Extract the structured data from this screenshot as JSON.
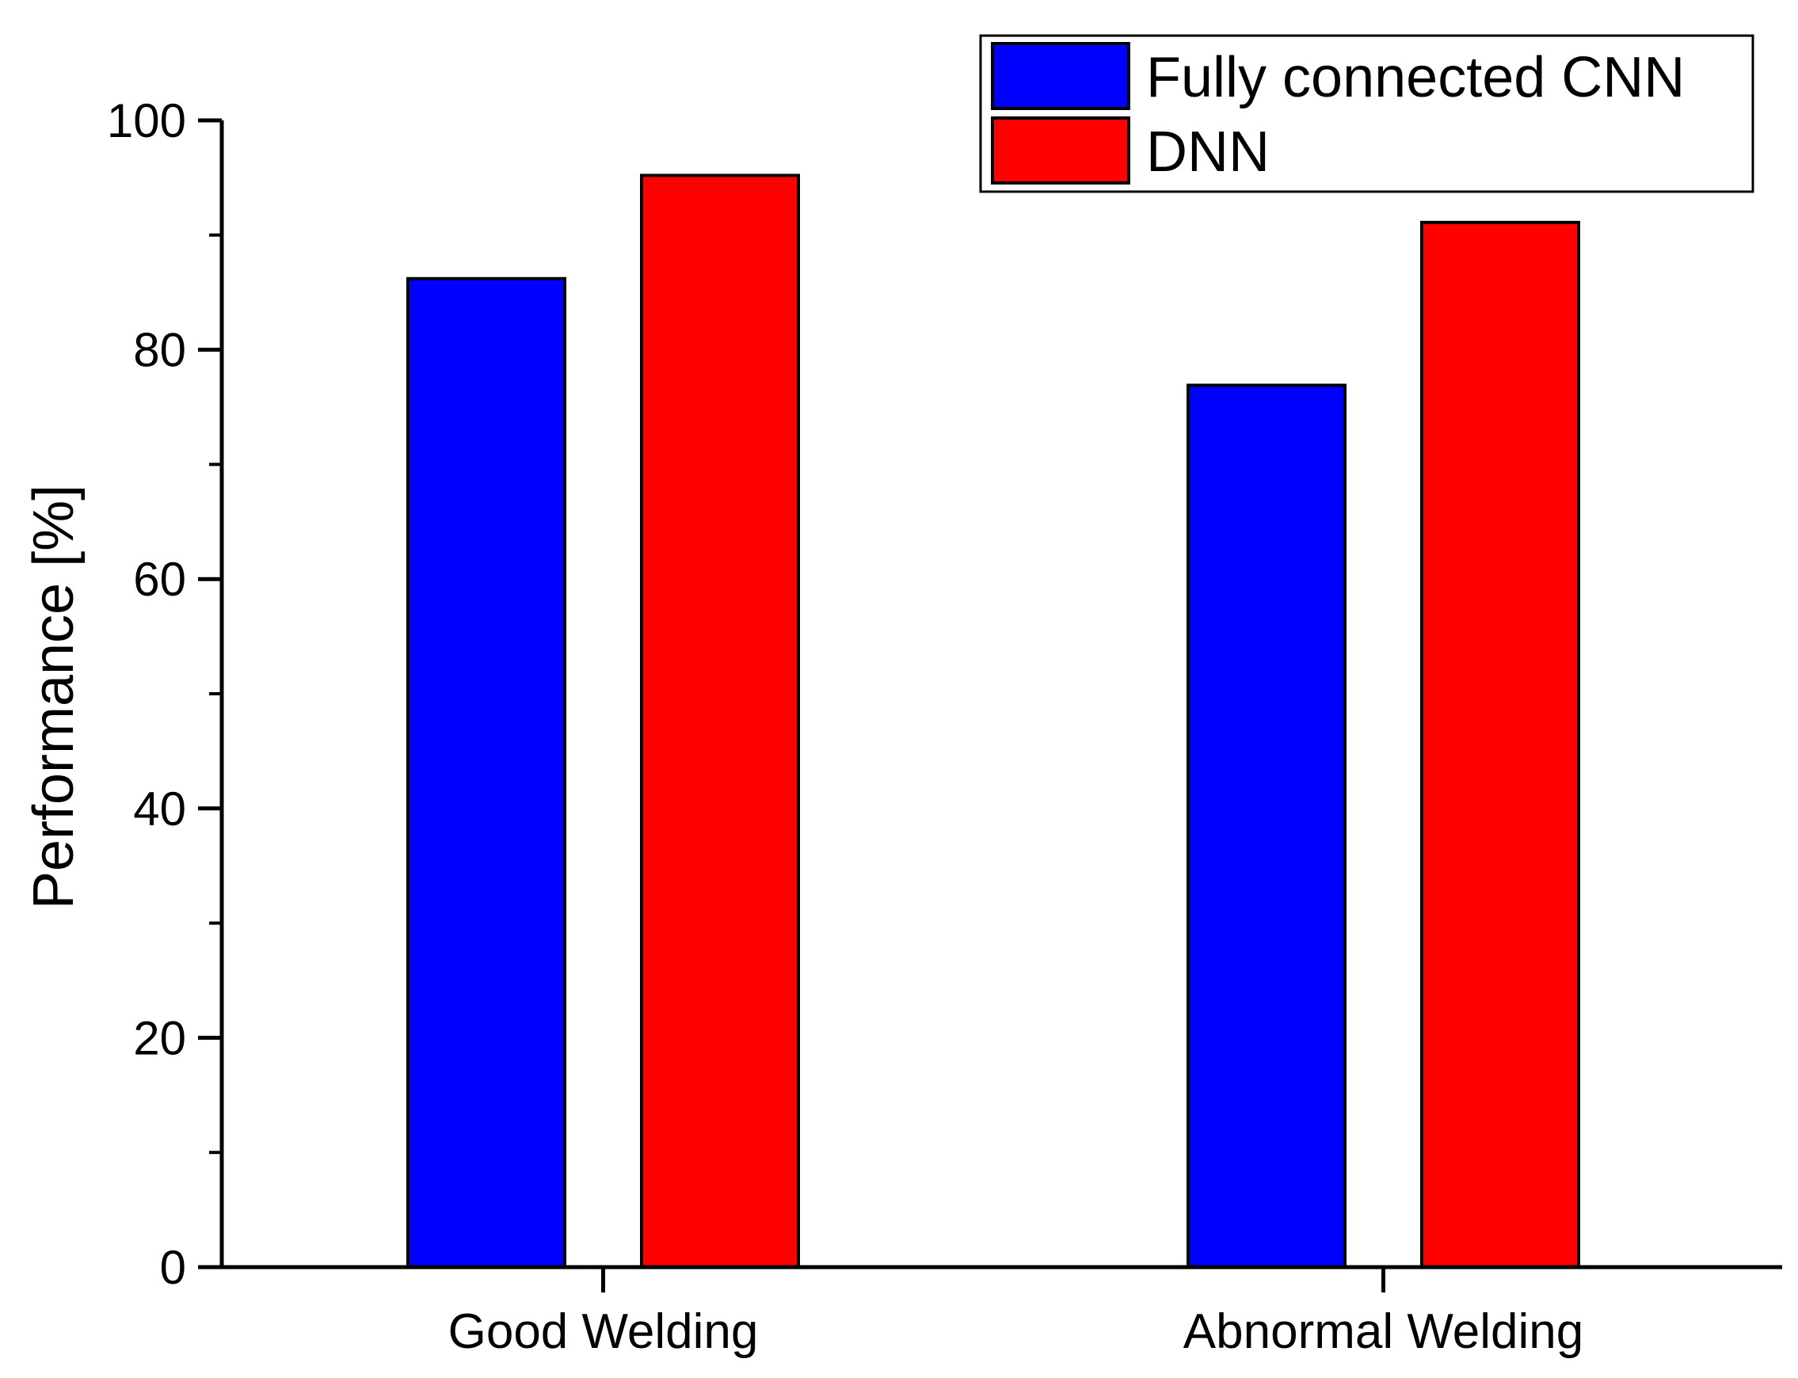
{
  "chart_data": {
    "type": "bar",
    "title": "",
    "xlabel": "",
    "ylabel": "Performance [%]",
    "ylim": [
      0,
      100
    ],
    "yticks": [
      0,
      20,
      40,
      60,
      80,
      100
    ],
    "categories": [
      "Good Welding",
      "Abnormal Welding"
    ],
    "series": [
      {
        "name": "Fully connected CNN",
        "color": "#0000ff",
        "values": [
          86.2,
          76.9
        ]
      },
      {
        "name": "DNN",
        "color": "#ff0000",
        "values": [
          95.2,
          91.1
        ]
      }
    ],
    "legend_position": "top-right",
    "grid": false
  }
}
